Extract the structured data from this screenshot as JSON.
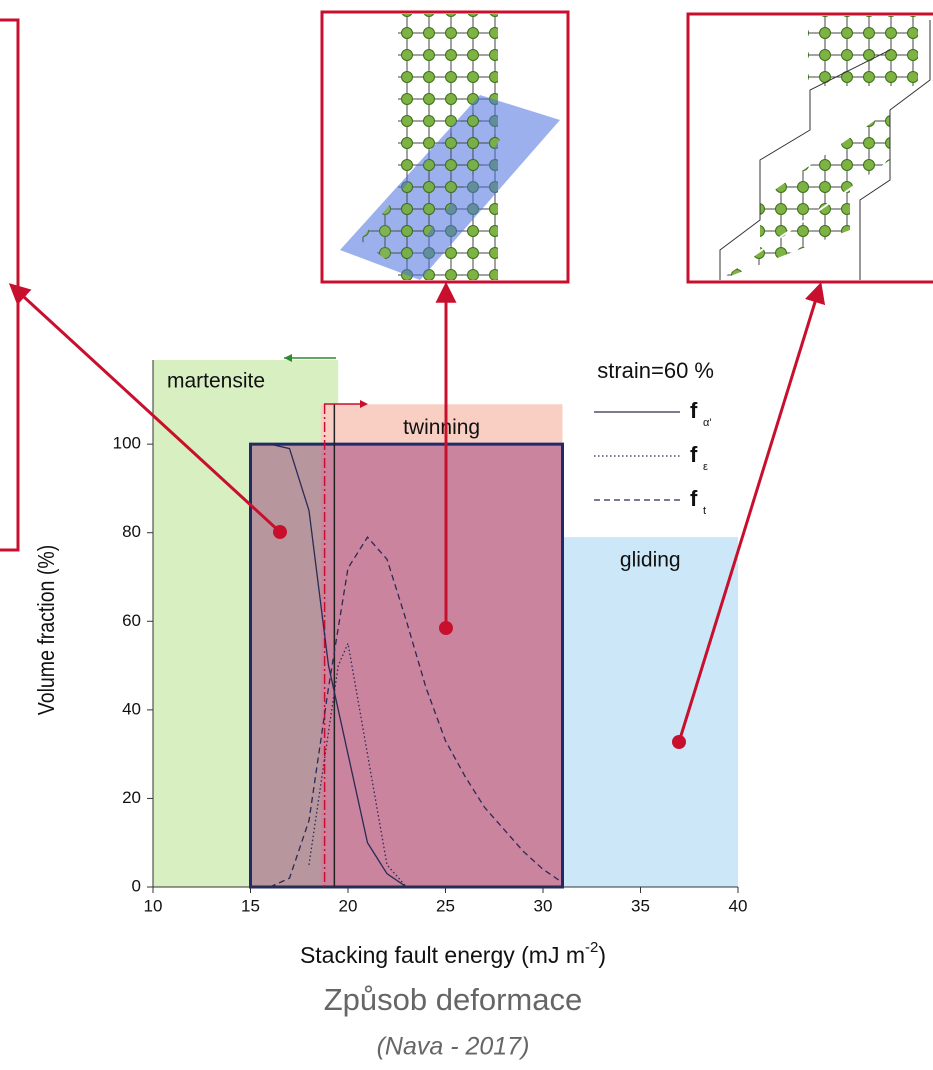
{
  "chart_data": {
    "type": "line",
    "annotation": "strain=60 %",
    "x_label": "Stacking fault energy (mJ m",
    "x_label_sup": "-2",
    "x_label_end": ")",
    "y_label": "Volume fraction (%)",
    "xlim": [
      10,
      40
    ],
    "ylim": [
      0,
      119
    ],
    "xticks": [
      10,
      15,
      20,
      25,
      30,
      35,
      40
    ],
    "yticks": [
      0,
      20,
      40,
      60,
      80,
      100
    ],
    "regions": [
      {
        "name": "martensite",
        "x": [
          10,
          19.5
        ],
        "top": 119,
        "color": "#d8efc2"
      },
      {
        "name": "twinning",
        "x": [
          18.6,
          31
        ],
        "top": 109,
        "color": "#f9cfc3"
      },
      {
        "name": "gliding",
        "x": [
          31,
          40
        ],
        "top": 79,
        "color": "#cce8f8"
      }
    ],
    "vlines": [
      {
        "x": 18.8,
        "color": "#c8102e"
      },
      {
        "x": 19.3,
        "color": "#222222"
      }
    ],
    "highlight": {
      "x": [
        15,
        31
      ],
      "y": [
        0,
        100
      ],
      "color": "#1f2a6b"
    },
    "series": [
      {
        "name": "f",
        "subscript": "α'",
        "dash": "none",
        "color": "#2a2a55",
        "x": [
          15,
          16,
          17,
          18,
          19,
          20,
          21,
          22,
          23
        ],
        "values": [
          100,
          100,
          99,
          85,
          50,
          30,
          10,
          3,
          0
        ]
      },
      {
        "name": "f",
        "subscript": "ε",
        "dash": "1.5 2.5",
        "color": "#2a2a55",
        "x": [
          18,
          19,
          19.5,
          20,
          21,
          22,
          23
        ],
        "values": [
          5,
          35,
          50,
          55,
          30,
          5,
          0
        ]
      },
      {
        "name": "f",
        "subscript": "t",
        "dash": "6 4",
        "color": "#2a2a55",
        "x": [
          16,
          17,
          18,
          19,
          20,
          21,
          22,
          23,
          24,
          25,
          26,
          27,
          28,
          29,
          30,
          31
        ],
        "values": [
          0,
          2,
          15,
          45,
          72,
          79,
          74,
          60,
          45,
          33,
          25,
          18,
          13,
          8,
          4,
          1
        ]
      }
    ]
  },
  "caption": {
    "title": "Způsob deformace",
    "source": "(Nava - 2017)"
  }
}
